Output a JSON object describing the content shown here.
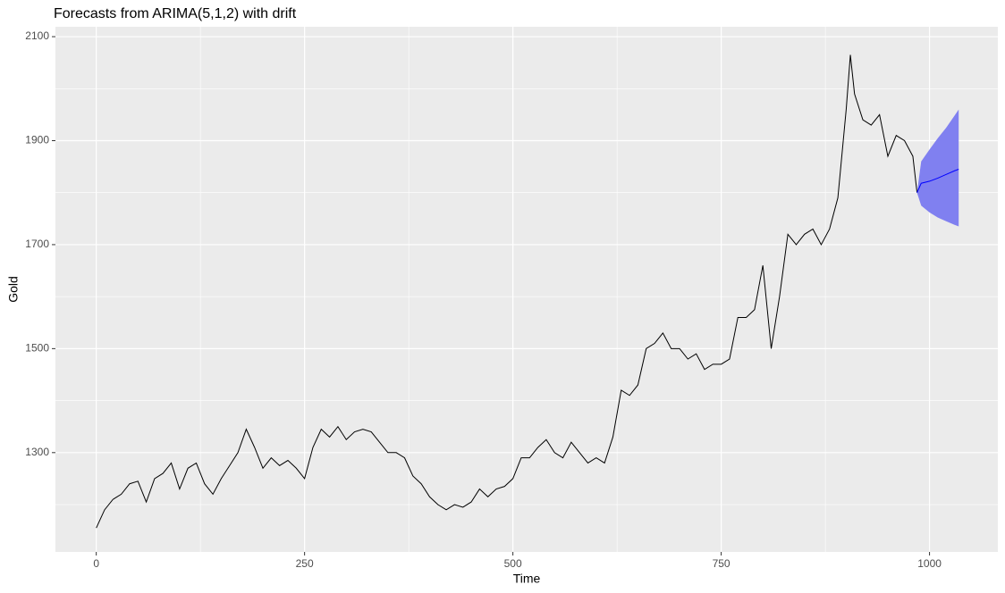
{
  "chart_data": {
    "type": "line",
    "title": "Forecasts from ARIMA(5,1,2) with drift",
    "xlabel": "Time",
    "ylabel": "Gold",
    "xlim": [
      -49,
      1082
    ],
    "ylim": [
      1109,
      2119
    ],
    "xticks": [
      0,
      250,
      500,
      750,
      1000
    ],
    "yticks": [
      1300,
      1500,
      1700,
      1900,
      2100
    ],
    "x_minor_ticks": [
      125,
      375,
      625,
      875
    ],
    "y_minor_ticks": [
      1200,
      1400,
      1600,
      1800,
      2000
    ],
    "grid": true,
    "series": [
      {
        "color": "#000000",
        "x": [
          0,
          10,
          20,
          30,
          40,
          50,
          60,
          70,
          80,
          90,
          100,
          110,
          120,
          130,
          140,
          150,
          160,
          170,
          180,
          190,
          200,
          210,
          220,
          230,
          240,
          250,
          260,
          270,
          280,
          290,
          300,
          310,
          320,
          330,
          340,
          350,
          360,
          370,
          380,
          390,
          400,
          410,
          420,
          430,
          440,
          450,
          460,
          470,
          480,
          490,
          500,
          510,
          520,
          530,
          540,
          550,
          560,
          570,
          580,
          590,
          600,
          610,
          620,
          630,
          640,
          650,
          660,
          670,
          680,
          690,
          700,
          710,
          720,
          730,
          740,
          750,
          760,
          770,
          780,
          790,
          800,
          810,
          820,
          830,
          840,
          850,
          860,
          870,
          880,
          890,
          900,
          905,
          910,
          920,
          930,
          940,
          950,
          960,
          970,
          980,
          985
        ],
        "values": [
          1155,
          1190,
          1210,
          1220,
          1240,
          1245,
          1205,
          1250,
          1260,
          1280,
          1230,
          1270,
          1280,
          1240,
          1220,
          1250,
          1275,
          1300,
          1345,
          1310,
          1270,
          1290,
          1275,
          1285,
          1270,
          1250,
          1310,
          1345,
          1330,
          1350,
          1325,
          1340,
          1345,
          1340,
          1320,
          1300,
          1300,
          1290,
          1255,
          1240,
          1215,
          1200,
          1190,
          1200,
          1195,
          1205,
          1230,
          1215,
          1230,
          1235,
          1250,
          1290,
          1290,
          1310,
          1325,
          1300,
          1290,
          1320,
          1300,
          1280,
          1290,
          1280,
          1330,
          1420,
          1410,
          1430,
          1500,
          1510,
          1530,
          1500,
          1500,
          1480,
          1490,
          1460,
          1470,
          1470,
          1480,
          1560,
          1560,
          1575,
          1660,
          1500,
          1600,
          1720,
          1700,
          1720,
          1730,
          1700,
          1730,
          1790,
          1960,
          2065,
          1990,
          1940,
          1930,
          1950,
          1870,
          1910,
          1900,
          1870,
          1800
        ]
      }
    ],
    "forecast": {
      "color": "#0000ff",
      "band_color": "#8080f0",
      "x": [
        985,
        990,
        1000,
        1010,
        1020,
        1030,
        1035
      ],
      "mean": [
        1800,
        1818,
        1822,
        1828,
        1835,
        1842,
        1845
      ],
      "lower": [
        1800,
        1775,
        1762,
        1752,
        1745,
        1738,
        1735
      ],
      "upper": [
        1800,
        1860,
        1883,
        1905,
        1925,
        1948,
        1960
      ]
    }
  }
}
